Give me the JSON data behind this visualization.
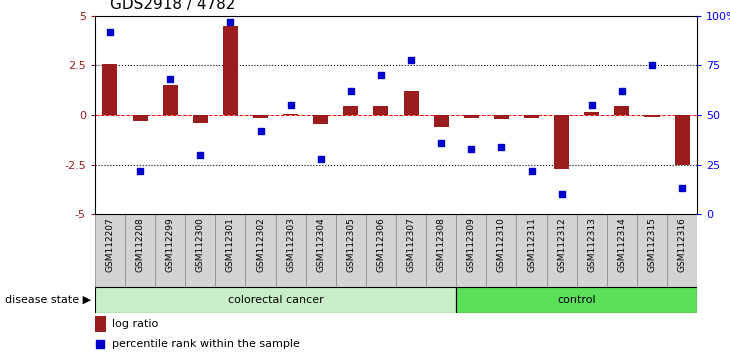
{
  "title": "GDS2918 / 4782",
  "samples": [
    "GSM112207",
    "GSM112208",
    "GSM112299",
    "GSM112300",
    "GSM112301",
    "GSM112302",
    "GSM112303",
    "GSM112304",
    "GSM112305",
    "GSM112306",
    "GSM112307",
    "GSM112308",
    "GSM112309",
    "GSM112310",
    "GSM112311",
    "GSM112312",
    "GSM112313",
    "GSM112314",
    "GSM112315",
    "GSM112316"
  ],
  "log_ratio": [
    2.6,
    -0.3,
    1.5,
    -0.4,
    4.5,
    -0.15,
    0.05,
    -0.45,
    0.45,
    0.45,
    1.2,
    -0.6,
    -0.15,
    -0.2,
    -0.15,
    -2.7,
    0.15,
    0.45,
    -0.1,
    -2.5
  ],
  "percentile": [
    92,
    22,
    68,
    30,
    97,
    42,
    55,
    28,
    62,
    70,
    78,
    36,
    33,
    34,
    22,
    10,
    55,
    62,
    75,
    13
  ],
  "colorectal_count": 12,
  "control_count": 8,
  "ylim_left": [
    -5,
    5
  ],
  "ylim_right": [
    0,
    100
  ],
  "bar_color": "#9B1C1C",
  "dot_color": "#0000CC",
  "colorectal_color": "#C8EEC8",
  "control_color": "#5AE05A",
  "legend_log": "log ratio",
  "legend_pct": "percentile rank within the sample"
}
